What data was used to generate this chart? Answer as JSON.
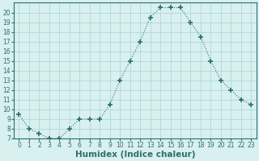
{
  "x": [
    0,
    1,
    2,
    3,
    4,
    5,
    6,
    7,
    8,
    9,
    10,
    11,
    12,
    13,
    14,
    15,
    16,
    17,
    18,
    19,
    20,
    21,
    22,
    23
  ],
  "y": [
    9.5,
    8.0,
    7.5,
    7.0,
    7.0,
    8.0,
    9.0,
    9.0,
    9.0,
    10.5,
    13.0,
    15.0,
    17.0,
    19.5,
    20.5,
    20.5,
    20.5,
    19.0,
    17.5,
    15.0,
    13.0,
    12.0,
    11.0,
    10.5
  ],
  "line_color": "#2d6e6e",
  "marker": "+",
  "marker_size": 4,
  "bg_color": "#d8f0ef",
  "grid_color": "#b0d8d8",
  "xlabel": "Humidex (Indice chaleur)",
  "xlim": [
    -0.5,
    23.5
  ],
  "ylim": [
    7,
    21
  ],
  "yticks": [
    7,
    8,
    9,
    10,
    11,
    12,
    13,
    14,
    15,
    16,
    17,
    18,
    19,
    20
  ],
  "xticks": [
    0,
    1,
    2,
    3,
    4,
    5,
    6,
    7,
    8,
    9,
    10,
    11,
    12,
    13,
    14,
    15,
    16,
    17,
    18,
    19,
    20,
    21,
    22,
    23
  ],
  "tick_label_color": "#2d6e6e",
  "tick_fontsize": 5.5,
  "xlabel_fontsize": 7.5,
  "xlabel_color": "#2d6e6e",
  "xlabel_weight": "bold"
}
